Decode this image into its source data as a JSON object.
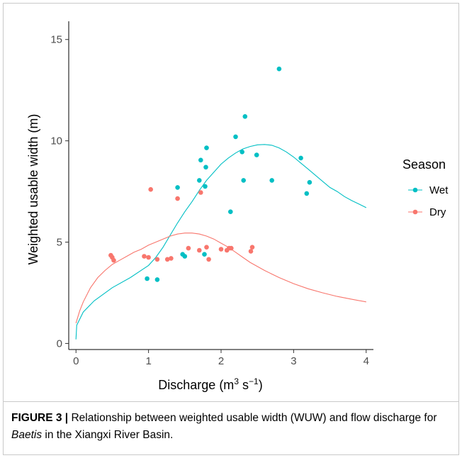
{
  "chart_data": {
    "type": "scatter",
    "xlabel": "Discharge (m",
    "xlabel_sup1": "3",
    "xlabel_mid": " s",
    "xlabel_sup2": "−1",
    "xlabel_end": ")",
    "ylabel": "Weighted usable width (m)",
    "xlim": [
      -0.1,
      4.1
    ],
    "ylim": [
      -0.3,
      15.9
    ],
    "xticks": [
      0,
      1,
      2,
      3,
      4
    ],
    "yticks": [
      0,
      5,
      10,
      15
    ],
    "grid": false,
    "legend_title": "Season",
    "legend_position": "right",
    "series": [
      {
        "name": "Wet",
        "color": "#00BFC4",
        "points": [
          [
            0.98,
            3.2
          ],
          [
            1.12,
            3.15
          ],
          [
            1.4,
            7.7
          ],
          [
            1.47,
            4.4
          ],
          [
            1.5,
            4.3
          ],
          [
            1.7,
            8.05
          ],
          [
            1.72,
            9.05
          ],
          [
            1.77,
            4.4
          ],
          [
            1.78,
            7.75
          ],
          [
            1.79,
            8.7
          ],
          [
            1.8,
            9.65
          ],
          [
            2.13,
            6.5
          ],
          [
            2.2,
            10.2
          ],
          [
            2.29,
            9.45
          ],
          [
            2.31,
            8.05
          ],
          [
            2.33,
            11.2
          ],
          [
            2.49,
            9.3
          ],
          [
            2.7,
            8.05
          ],
          [
            2.8,
            13.55
          ],
          [
            3.1,
            9.15
          ],
          [
            3.18,
            7.4
          ],
          [
            3.22,
            7.95
          ]
        ],
        "curve": [
          [
            0.0,
            0.2
          ],
          [
            0.01,
            0.9
          ],
          [
            0.1,
            1.55
          ],
          [
            0.25,
            2.1
          ],
          [
            0.5,
            2.75
          ],
          [
            0.75,
            3.25
          ],
          [
            1.0,
            3.85
          ],
          [
            1.1,
            4.25
          ],
          [
            1.2,
            4.75
          ],
          [
            1.3,
            5.35
          ],
          [
            1.4,
            5.95
          ],
          [
            1.5,
            6.5
          ],
          [
            1.6,
            7.0
          ],
          [
            1.7,
            7.55
          ],
          [
            1.8,
            8.05
          ],
          [
            1.9,
            8.45
          ],
          [
            2.0,
            8.85
          ],
          [
            2.1,
            9.15
          ],
          [
            2.2,
            9.4
          ],
          [
            2.3,
            9.6
          ],
          [
            2.4,
            9.72
          ],
          [
            2.5,
            9.8
          ],
          [
            2.6,
            9.82
          ],
          [
            2.7,
            9.78
          ],
          [
            2.8,
            9.65
          ],
          [
            2.9,
            9.45
          ],
          [
            3.0,
            9.2
          ],
          [
            3.1,
            8.9
          ],
          [
            3.2,
            8.6
          ],
          [
            3.3,
            8.3
          ],
          [
            3.4,
            8.0
          ],
          [
            3.5,
            7.7
          ],
          [
            3.6,
            7.5
          ],
          [
            3.7,
            7.25
          ],
          [
            3.8,
            7.05
          ],
          [
            3.9,
            6.88
          ],
          [
            4.0,
            6.7
          ]
        ]
      },
      {
        "name": "Dry",
        "color": "#F8766D",
        "points": [
          [
            0.48,
            4.35
          ],
          [
            0.5,
            4.25
          ],
          [
            0.52,
            4.1
          ],
          [
            0.94,
            4.3
          ],
          [
            1.0,
            4.25
          ],
          [
            1.03,
            7.6
          ],
          [
            1.12,
            4.15
          ],
          [
            1.26,
            4.15
          ],
          [
            1.31,
            4.2
          ],
          [
            1.4,
            7.15
          ],
          [
            1.55,
            4.7
          ],
          [
            1.7,
            4.6
          ],
          [
            1.72,
            7.45
          ],
          [
            1.8,
            4.75
          ],
          [
            1.83,
            4.15
          ],
          [
            2.0,
            4.65
          ],
          [
            2.08,
            4.6
          ],
          [
            2.11,
            4.7
          ],
          [
            2.14,
            4.7
          ],
          [
            2.41,
            4.55
          ],
          [
            2.43,
            4.75
          ]
        ],
        "curve": [
          [
            0.0,
            1.0
          ],
          [
            0.05,
            1.6
          ],
          [
            0.1,
            2.05
          ],
          [
            0.2,
            2.75
          ],
          [
            0.3,
            3.25
          ],
          [
            0.4,
            3.6
          ],
          [
            0.5,
            3.9
          ],
          [
            0.6,
            4.1
          ],
          [
            0.7,
            4.3
          ],
          [
            0.8,
            4.5
          ],
          [
            0.9,
            4.65
          ],
          [
            1.0,
            4.85
          ],
          [
            1.1,
            5.0
          ],
          [
            1.2,
            5.15
          ],
          [
            1.3,
            5.3
          ],
          [
            1.4,
            5.4
          ],
          [
            1.5,
            5.45
          ],
          [
            1.6,
            5.45
          ],
          [
            1.7,
            5.4
          ],
          [
            1.8,
            5.3
          ],
          [
            1.9,
            5.15
          ],
          [
            2.0,
            4.95
          ],
          [
            2.1,
            4.75
          ],
          [
            2.2,
            4.5
          ],
          [
            2.3,
            4.25
          ],
          [
            2.4,
            4.0
          ],
          [
            2.6,
            3.6
          ],
          [
            2.8,
            3.25
          ],
          [
            3.0,
            2.95
          ],
          [
            3.2,
            2.7
          ],
          [
            3.4,
            2.5
          ],
          [
            3.6,
            2.32
          ],
          [
            3.8,
            2.18
          ],
          [
            4.0,
            2.05
          ]
        ]
      }
    ]
  },
  "caption": {
    "label": "FIGURE 3 |",
    "text_before": " Relationship between weighted usable width (WUW) and flow discharge for ",
    "species": "Baetis",
    "text_after": " in the Xiangxi River Basin."
  }
}
